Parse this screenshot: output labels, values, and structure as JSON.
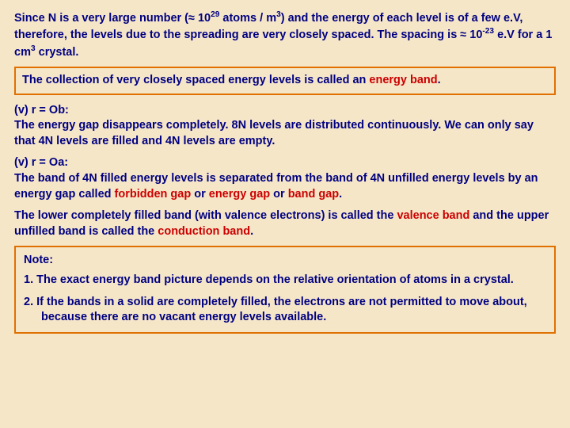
{
  "colors": {
    "background": "#f5e6c8",
    "text_primary": "#000080",
    "text_highlight": "#cc0000",
    "box_border": "#e07000"
  },
  "typography": {
    "font_family": "Arial, sans-serif",
    "base_fontsize_pt": 11,
    "font_weight": "bold",
    "line_height": 1.35
  },
  "p1": {
    "a": "Since N is a very large number (≈ 10",
    "sup1": "29",
    "b": " atoms / m",
    "sup2": "3",
    "c": ") and the energy of each level is of a few e.V, therefore, the levels due to the spreading are very closely spaced. The spacing is ≈ 10",
    "sup3": "-23",
    "d": " e.V for a 1 cm",
    "sup4": "3",
    "e": " crystal."
  },
  "box1": {
    "a": "The collection of very closely spaced energy levels is called an ",
    "b": "energy band",
    "c": "."
  },
  "p2": {
    "a": "(v) r = Ob:",
    "b": "The energy gap disappears completely.  8N levels are distributed continuously.  We can only say that 4N levels are filled and 4N levels are empty."
  },
  "p3": {
    "a": "(v) r = Oa:",
    "b": "The band of 4N filled energy levels is separated from the band of 4N unfilled energy levels by an energy gap called ",
    "c": "forbidden gap",
    "d": " or ",
    "e": "energy gap",
    "f": " or ",
    "g": "band gap",
    "h": "."
  },
  "p4": {
    "a": "The lower completely filled band (with valence electrons) is called the ",
    "b": "valence band",
    "c": " and the upper unfilled band is called the ",
    "d": "conduction band",
    "e": "."
  },
  "note": {
    "title": "Note:",
    "item1": "1.  The exact energy band picture depends on the relative orientation of atoms in a crystal.",
    "item2": "2.  If the bands in a solid are completely filled, the electrons are not permitted to move about, because there are no vacant energy levels available."
  }
}
